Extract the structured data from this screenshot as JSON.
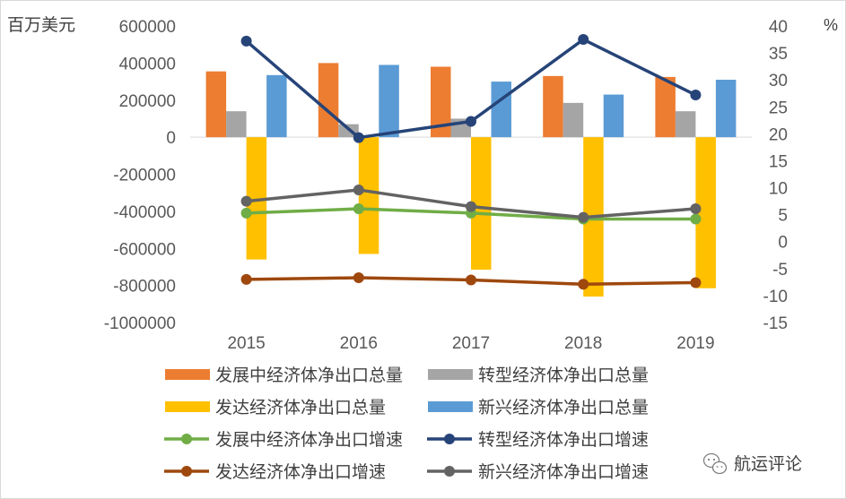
{
  "chart_data": {
    "type": "bar+line",
    "y_left_label": "百万美元",
    "y_right_label": "%",
    "y_left_range": [
      -1000000,
      600000
    ],
    "y_left_ticks": [
      600000,
      400000,
      200000,
      0,
      -200000,
      -400000,
      -600000,
      -800000,
      -1000000
    ],
    "y_left_tick_labels": [
      "600000",
      "400000",
      "200000",
      "0",
      "-200000",
      "-400000",
      "-600000",
      "-800000",
      "-1000000"
    ],
    "y_right_range": [
      -15,
      40
    ],
    "y_right_ticks": [
      40,
      35,
      30,
      25,
      20,
      15,
      10,
      5,
      0,
      -5,
      -10,
      -15
    ],
    "y_right_tick_labels": [
      "40",
      "35",
      "30",
      "25",
      "20",
      "15",
      "10",
      "5",
      "0",
      "-5",
      "-10",
      "-15"
    ],
    "categories": [
      "2015",
      "2016",
      "2017",
      "2018",
      "2019"
    ],
    "bar_series": [
      {
        "name": "发展中经济体净出口总量",
        "color": "#ed7d31",
        "values": [
          355000,
          400000,
          380000,
          330000,
          325000
        ]
      },
      {
        "name": "转型经济体净出口总量",
        "color": "#a5a5a5",
        "values": [
          140000,
          70000,
          100000,
          185000,
          140000
        ]
      },
      {
        "name": "发达经济体净出口总量",
        "color": "#ffc000",
        "values": [
          -660000,
          -630000,
          -715000,
          -860000,
          -815000
        ]
      },
      {
        "name": "新兴经济体净出口总量",
        "color": "#5b9bd5",
        "values": [
          335000,
          390000,
          300000,
          230000,
          310000
        ]
      }
    ],
    "line_series": [
      {
        "name": "发展中经济体净出口增速",
        "color": "#70ad47",
        "values": [
          5.3,
          6.1,
          5.3,
          4.2,
          4.2
        ]
      },
      {
        "name": "转型经济体净出口增速",
        "color": "#264478",
        "values": [
          37.2,
          19.3,
          22.3,
          37.5,
          27.2
        ]
      },
      {
        "name": "发达经济体净出口增速",
        "color": "#9e480e",
        "values": [
          -7.0,
          -6.7,
          -7.1,
          -7.9,
          -7.6
        ]
      },
      {
        "name": "新兴经济体净出口增速",
        "color": "#636363",
        "values": [
          7.5,
          9.6,
          6.5,
          4.5,
          6.1
        ]
      }
    ],
    "legend_order": [
      "发展中经济体净出口总量",
      "转型经济体净出口总量",
      "发达经济体净出口总量",
      "新兴经济体净出口总量",
      "发展中经济体净出口增速",
      "转型经济体净出口增速",
      "发达经济体净出口增速",
      "新兴经济体净出口增速"
    ]
  },
  "watermark": {
    "text": "航运评论",
    "icon": "wechat-icon"
  }
}
